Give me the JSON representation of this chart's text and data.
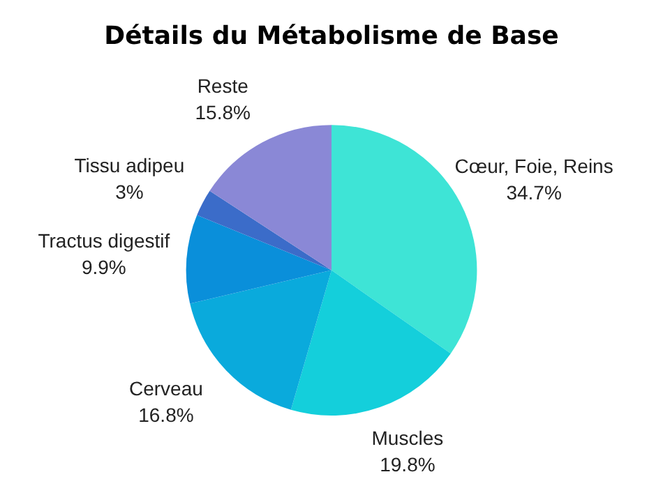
{
  "chart_data": {
    "type": "pie",
    "title": "Détails du Métabolisme de Base",
    "categories": [
      "Cœur, Foie, Reins",
      "Muscles",
      "Cerveau",
      "Tractus digestif",
      "Tissu adipeu",
      "Reste"
    ],
    "values": [
      34.7,
      19.8,
      16.8,
      9.9,
      3,
      15.8
    ],
    "value_labels": [
      "34.7%",
      "19.8%",
      "16.8%",
      "9.9%",
      "3%",
      "15.8%"
    ],
    "colors": [
      "#3ee4d6",
      "#14cfdb",
      "#0aaadc",
      "#0a8fda",
      "#3b6cc9",
      "#8a88d6"
    ],
    "legend": false
  }
}
